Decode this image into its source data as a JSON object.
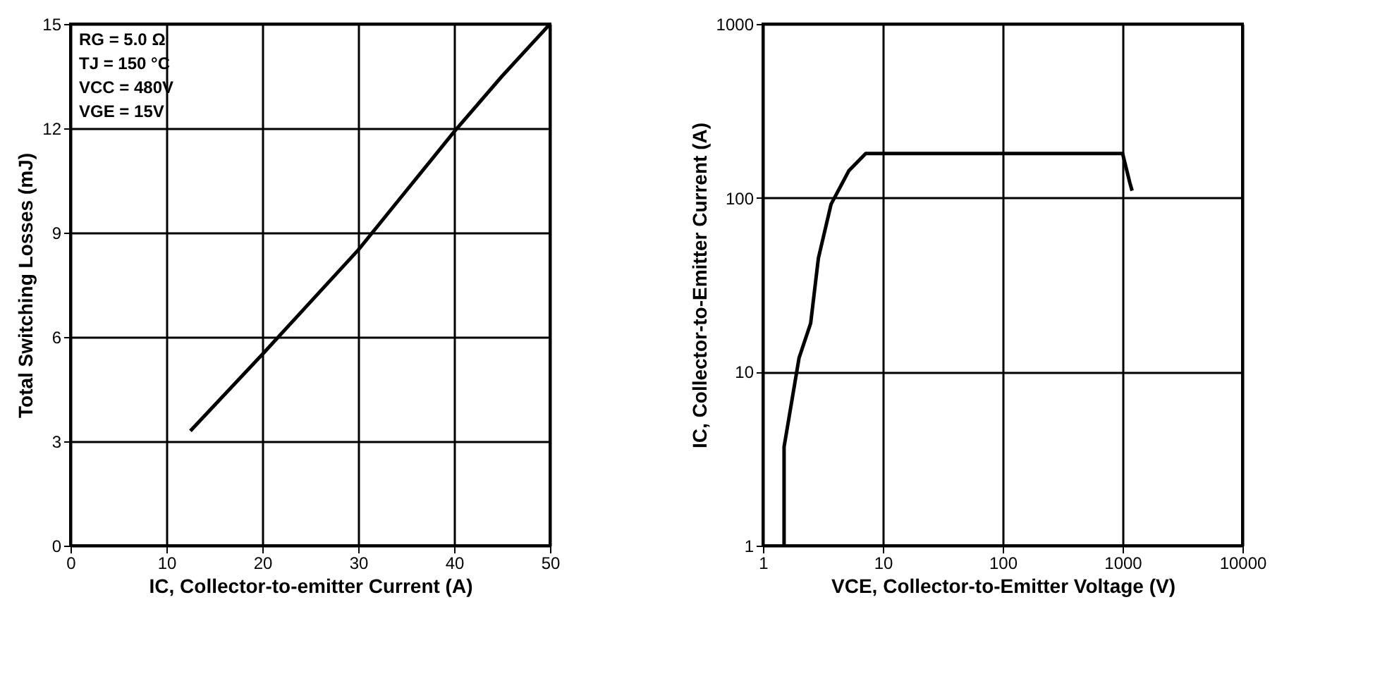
{
  "chart_data": [
    {
      "type": "line",
      "xlabel": "IC, Collector-to-emitter Current (A)",
      "ylabel": "Total Switching Losses (mJ)",
      "x": [
        12.5,
        20,
        25,
        30,
        35,
        40,
        45,
        50
      ],
      "series": [
        {
          "color": "#000000",
          "values": [
            3.3,
            5.5,
            7.0,
            8.5,
            10.2,
            11.9,
            13.5,
            15
          ]
        }
      ],
      "xlim": [
        0,
        50
      ],
      "xticks": [
        0,
        10,
        20,
        30,
        40,
        50
      ],
      "ylim": [
        0,
        15
      ],
      "yticks": [
        0,
        3,
        6,
        9,
        12,
        15
      ],
      "grid": true,
      "legend": false,
      "marker": "none",
      "line_style": "solid",
      "annotations": [
        "RG = 5.0 Ω",
        "TJ = 150 °C",
        "VCC = 480V",
        "VGE = 15V"
      ]
    },
    {
      "type": "line",
      "xlabel": "VCE, Collector-to-Emitter Voltage (V)",
      "ylabel": "IC, Collector-to-Emitter Current (A)",
      "x": [
        1.5,
        1.5,
        2.0,
        2.5,
        2.9,
        3.7,
        5.2,
        7.2,
        1000,
        1150,
        1200
      ],
      "series": [
        {
          "color": "#000000",
          "values": [
            1,
            3.7,
            12,
            19,
            45,
            92,
            143,
            180,
            180,
            122,
            110
          ]
        }
      ],
      "log": "xy",
      "xlim": [
        1,
        10000
      ],
      "xticks": [
        1,
        10,
        100,
        1000,
        10000
      ],
      "ylim": [
        1,
        1000
      ],
      "yticks": [
        1,
        10,
        100,
        1000
      ],
      "grid": true,
      "legend": false,
      "marker": "none",
      "line_style": "solid"
    }
  ]
}
